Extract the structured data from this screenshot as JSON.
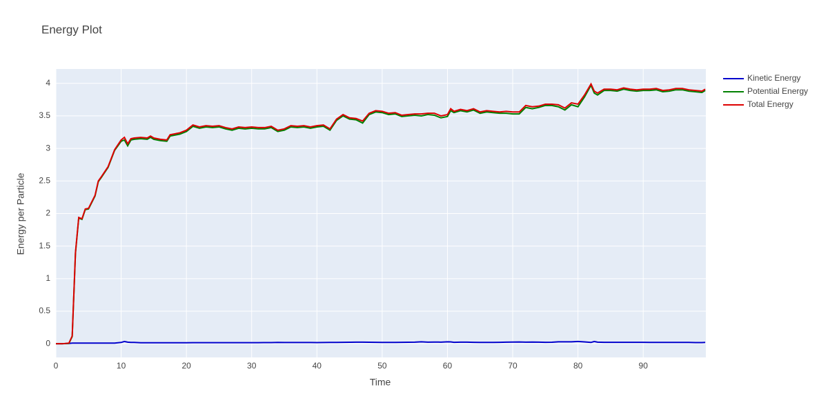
{
  "chart_data": {
    "type": "line",
    "title": "Energy Plot",
    "xlabel": "Time",
    "ylabel": "Energy per Particle",
    "x": [
      0,
      1,
      2,
      2.5,
      3,
      3.5,
      4,
      4.5,
      5,
      6,
      6.5,
      7,
      8,
      9,
      10,
      10.5,
      11,
      11.5,
      12,
      13,
      14,
      14.5,
      15,
      16,
      17,
      17.5,
      18,
      19,
      20,
      21,
      22,
      23,
      24,
      25,
      26,
      27,
      28,
      29,
      30,
      31,
      32,
      33,
      34,
      35,
      36,
      37,
      38,
      39,
      40,
      41,
      42,
      43,
      44,
      45,
      46,
      47,
      48,
      49,
      50,
      51,
      52,
      53,
      54,
      55,
      56,
      57,
      58,
      59,
      60,
      60.5,
      61,
      62,
      63,
      64,
      65,
      66,
      67,
      68,
      69,
      70,
      71,
      72,
      73,
      74,
      75,
      76,
      77,
      78,
      79,
      80,
      81,
      82,
      82.5,
      83,
      84,
      85,
      86,
      87,
      88,
      89,
      90,
      91,
      92,
      93,
      94,
      95,
      96,
      97,
      98,
      99,
      99.5
    ],
    "series": [
      {
        "name": "Kinetic Energy",
        "color": "#0000cc",
        "values": [
          0,
          0,
          0.005,
          0.01,
          0.01,
          0.01,
          0.01,
          0.01,
          0.01,
          0.01,
          0.01,
          0.01,
          0.01,
          0.01,
          0.02,
          0.035,
          0.025,
          0.02,
          0.02,
          0.015,
          0.015,
          0.015,
          0.015,
          0.015,
          0.015,
          0.015,
          0.015,
          0.015,
          0.015,
          0.016,
          0.016,
          0.016,
          0.017,
          0.017,
          0.016,
          0.017,
          0.017,
          0.017,
          0.017,
          0.017,
          0.018,
          0.018,
          0.02,
          0.019,
          0.019,
          0.019,
          0.019,
          0.019,
          0.018,
          0.019,
          0.02,
          0.021,
          0.022,
          0.023,
          0.025,
          0.024,
          0.023,
          0.022,
          0.02,
          0.02,
          0.021,
          0.022,
          0.023,
          0.024,
          0.03,
          0.025,
          0.026,
          0.025,
          0.03,
          0.028,
          0.022,
          0.025,
          0.024,
          0.022,
          0.02,
          0.02,
          0.021,
          0.022,
          0.025,
          0.026,
          0.027,
          0.025,
          0.026,
          0.024,
          0.022,
          0.023,
          0.03,
          0.03,
          0.03,
          0.035,
          0.028,
          0.02,
          0.035,
          0.025,
          0.022,
          0.022,
          0.022,
          0.022,
          0.022,
          0.022,
          0.022,
          0.02,
          0.02,
          0.02,
          0.02,
          0.02,
          0.02,
          0.02,
          0.018,
          0.018,
          0.02
        ]
      },
      {
        "name": "Potential Energy",
        "color": "#008000",
        "values": [
          0,
          0,
          0.005,
          0.11,
          1.39,
          1.93,
          1.91,
          2.06,
          2.07,
          2.27,
          2.49,
          2.56,
          2.71,
          2.97,
          3.11,
          3.13,
          3.04,
          3.13,
          3.14,
          3.15,
          3.14,
          3.17,
          3.14,
          3.12,
          3.11,
          3.19,
          3.2,
          3.22,
          3.26,
          3.34,
          3.31,
          3.33,
          3.32,
          3.33,
          3.3,
          3.28,
          3.31,
          3.3,
          3.31,
          3.3,
          3.3,
          3.32,
          3.26,
          3.28,
          3.33,
          3.32,
          3.33,
          3.31,
          3.33,
          3.34,
          3.28,
          3.43,
          3.5,
          3.45,
          3.44,
          3.39,
          3.52,
          3.56,
          3.55,
          3.52,
          3.53,
          3.49,
          3.5,
          3.51,
          3.5,
          3.52,
          3.51,
          3.47,
          3.49,
          3.58,
          3.55,
          3.58,
          3.56,
          3.59,
          3.54,
          3.56,
          3.55,
          3.54,
          3.54,
          3.53,
          3.53,
          3.63,
          3.61,
          3.63,
          3.66,
          3.66,
          3.64,
          3.59,
          3.67,
          3.64,
          3.79,
          3.97,
          3.85,
          3.82,
          3.89,
          3.89,
          3.88,
          3.91,
          3.89,
          3.88,
          3.89,
          3.89,
          3.9,
          3.87,
          3.88,
          3.9,
          3.9,
          3.88,
          3.87,
          3.86,
          3.89
        ]
      },
      {
        "name": "Total Energy",
        "color": "#dd0000",
        "values": [
          0,
          0,
          0.01,
          0.12,
          1.4,
          1.94,
          1.92,
          2.07,
          2.08,
          2.28,
          2.5,
          2.57,
          2.72,
          2.98,
          3.13,
          3.17,
          3.07,
          3.15,
          3.16,
          3.17,
          3.16,
          3.19,
          3.16,
          3.14,
          3.13,
          3.21,
          3.22,
          3.24,
          3.28,
          3.36,
          3.33,
          3.35,
          3.34,
          3.35,
          3.32,
          3.3,
          3.33,
          3.32,
          3.33,
          3.32,
          3.32,
          3.34,
          3.28,
          3.3,
          3.35,
          3.34,
          3.35,
          3.33,
          3.35,
          3.36,
          3.3,
          3.45,
          3.52,
          3.47,
          3.46,
          3.42,
          3.54,
          3.58,
          3.57,
          3.54,
          3.55,
          3.51,
          3.52,
          3.53,
          3.53,
          3.54,
          3.54,
          3.5,
          3.52,
          3.61,
          3.57,
          3.6,
          3.58,
          3.61,
          3.56,
          3.58,
          3.57,
          3.56,
          3.57,
          3.56,
          3.56,
          3.66,
          3.64,
          3.65,
          3.68,
          3.68,
          3.67,
          3.62,
          3.7,
          3.68,
          3.82,
          3.99,
          3.88,
          3.85,
          3.91,
          3.91,
          3.9,
          3.93,
          3.91,
          3.9,
          3.91,
          3.91,
          3.92,
          3.89,
          3.9,
          3.92,
          3.92,
          3.9,
          3.89,
          3.88,
          3.91
        ]
      }
    ],
    "xlim": [
      0,
      99.6
    ],
    "xticks": [
      0,
      10,
      20,
      30,
      40,
      50,
      60,
      70,
      80,
      90
    ],
    "ylim": [
      -0.21,
      4.22
    ],
    "yticks": [
      0,
      0.5,
      1,
      1.5,
      2,
      2.5,
      3,
      3.5,
      4
    ],
    "grid": true
  }
}
